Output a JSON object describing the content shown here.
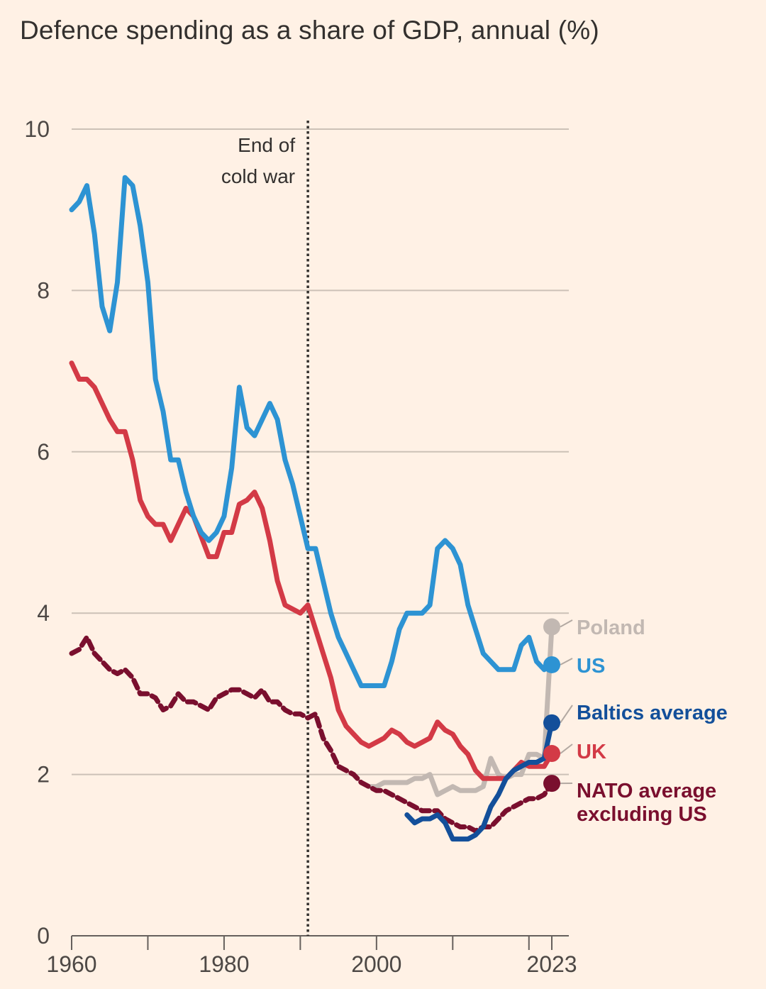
{
  "title": "Defence spending as a share of GDP, annual (%)",
  "colors": {
    "background": "#fff1e5",
    "US": "#2d93d3",
    "UK": "#d33a46",
    "Poland": "#c2b8b2",
    "Baltics average": "#134f9a",
    "NATO average excluding US": "#7a0f2e",
    "grid": "#ccc1b7",
    "text": "#33302e"
  },
  "chart_data": {
    "type": "line",
    "title": "Defence spending as a share of GDP, annual (%)",
    "xlabel": "",
    "ylabel": "",
    "xlim": [
      1960,
      2023
    ],
    "ylim": [
      0,
      10
    ],
    "grid": true,
    "x_ticks": [
      "1960",
      "1980",
      "2000",
      "2023"
    ],
    "y_ticks": [
      "0",
      "2",
      "4",
      "6",
      "8",
      "10"
    ],
    "annotation": {
      "label_line1": "End of",
      "label_line2": "cold war",
      "x": 1991
    },
    "series": [
      {
        "name": "US",
        "label": "US",
        "style": "solid",
        "x": [
          1960,
          1961,
          1962,
          1963,
          1964,
          1965,
          1966,
          1967,
          1968,
          1969,
          1970,
          1971,
          1972,
          1973,
          1974,
          1975,
          1976,
          1977,
          1978,
          1979,
          1980,
          1981,
          1982,
          1983,
          1984,
          1985,
          1986,
          1987,
          1988,
          1989,
          1990,
          1991,
          1992,
          1993,
          1994,
          1995,
          1996,
          1997,
          1998,
          1999,
          2000,
          2001,
          2002,
          2003,
          2004,
          2005,
          2006,
          2007,
          2008,
          2009,
          2010,
          2011,
          2012,
          2013,
          2014,
          2015,
          2016,
          2017,
          2018,
          2019,
          2020,
          2021,
          2022,
          2023
        ],
        "values": [
          9.0,
          9.1,
          9.3,
          8.7,
          7.8,
          7.5,
          8.1,
          9.4,
          9.3,
          8.8,
          8.1,
          6.9,
          6.5,
          5.9,
          5.9,
          5.5,
          5.2,
          5.0,
          4.9,
          5.0,
          5.2,
          5.8,
          6.8,
          6.3,
          6.2,
          6.4,
          6.6,
          6.4,
          5.9,
          5.6,
          5.2,
          4.8,
          4.8,
          4.4,
          4.0,
          3.7,
          3.5,
          3.3,
          3.1,
          3.1,
          3.1,
          3.1,
          3.4,
          3.8,
          4.0,
          4.0,
          4.0,
          4.1,
          4.8,
          4.9,
          4.8,
          4.6,
          4.1,
          3.8,
          3.5,
          3.4,
          3.3,
          3.3,
          3.3,
          3.6,
          3.7,
          3.4,
          3.3,
          3.36
        ]
      },
      {
        "name": "UK",
        "label": "UK",
        "style": "solid",
        "x": [
          1960,
          1961,
          1962,
          1963,
          1964,
          1965,
          1966,
          1967,
          1968,
          1969,
          1970,
          1971,
          1972,
          1973,
          1974,
          1975,
          1976,
          1977,
          1978,
          1979,
          1980,
          1981,
          1982,
          1983,
          1984,
          1985,
          1986,
          1987,
          1988,
          1989,
          1990,
          1991,
          1992,
          1993,
          1994,
          1995,
          1996,
          1997,
          1998,
          1999,
          2000,
          2001,
          2002,
          2003,
          2004,
          2005,
          2006,
          2007,
          2008,
          2009,
          2010,
          2011,
          2012,
          2013,
          2014,
          2015,
          2016,
          2017,
          2018,
          2019,
          2020,
          2021,
          2022,
          2023
        ],
        "values": [
          7.1,
          6.9,
          6.9,
          6.8,
          6.6,
          6.4,
          6.25,
          6.25,
          5.9,
          5.4,
          5.2,
          5.1,
          5.1,
          4.9,
          5.1,
          5.3,
          5.2,
          4.95,
          4.7,
          4.7,
          5.0,
          5.0,
          5.35,
          5.4,
          5.5,
          5.3,
          4.9,
          4.4,
          4.1,
          4.05,
          4.0,
          4.1,
          3.8,
          3.5,
          3.2,
          2.8,
          2.6,
          2.5,
          2.4,
          2.35,
          2.4,
          2.45,
          2.55,
          2.5,
          2.4,
          2.35,
          2.4,
          2.45,
          2.65,
          2.55,
          2.5,
          2.35,
          2.25,
          2.05,
          1.95,
          1.95,
          1.95,
          1.95,
          2.05,
          2.15,
          2.1,
          2.1,
          2.1,
          2.26
        ]
      },
      {
        "name": "Poland",
        "label": "Poland",
        "style": "solid",
        "x": [
          1999,
          2000,
          2001,
          2002,
          2003,
          2004,
          2005,
          2006,
          2007,
          2008,
          2009,
          2010,
          2011,
          2012,
          2013,
          2014,
          2015,
          2016,
          2017,
          2018,
          2019,
          2020,
          2021,
          2022,
          2023
        ],
        "values": [
          1.85,
          1.85,
          1.9,
          1.9,
          1.9,
          1.9,
          1.95,
          1.95,
          2.0,
          1.75,
          1.8,
          1.85,
          1.8,
          1.8,
          1.8,
          1.85,
          2.2,
          2.0,
          1.95,
          2.0,
          2.0,
          2.25,
          2.25,
          2.2,
          3.83
        ]
      },
      {
        "name": "Baltics average",
        "label": "Baltics average",
        "style": "solid",
        "x": [
          2004,
          2005,
          2006,
          2007,
          2008,
          2009,
          2010,
          2011,
          2012,
          2013,
          2014,
          2015,
          2016,
          2017,
          2018,
          2019,
          2020,
          2021,
          2022,
          2023
        ],
        "values": [
          1.5,
          1.4,
          1.45,
          1.45,
          1.5,
          1.4,
          1.2,
          1.2,
          1.2,
          1.25,
          1.35,
          1.6,
          1.75,
          1.95,
          2.05,
          2.1,
          2.15,
          2.15,
          2.2,
          2.64
        ]
      },
      {
        "name": "NATO average excluding US",
        "label": "NATO average excluding US",
        "label_line1": "NATO average",
        "label_line2": "excluding US",
        "style": "dashed",
        "x": [
          1960,
          1961,
          1962,
          1963,
          1964,
          1965,
          1966,
          1967,
          1968,
          1969,
          1970,
          1971,
          1972,
          1973,
          1974,
          1975,
          1976,
          1977,
          1978,
          1979,
          1980,
          1981,
          1982,
          1983,
          1984,
          1985,
          1986,
          1987,
          1988,
          1989,
          1990,
          1991,
          1992,
          1993,
          1994,
          1995,
          1996,
          1997,
          1998,
          1999,
          2000,
          2001,
          2002,
          2003,
          2004,
          2005,
          2006,
          2007,
          2008,
          2009,
          2010,
          2011,
          2012,
          2013,
          2014,
          2015,
          2016,
          2017,
          2018,
          2019,
          2020,
          2021,
          2022,
          2023
        ],
        "values": [
          3.5,
          3.55,
          3.7,
          3.5,
          3.4,
          3.3,
          3.25,
          3.3,
          3.2,
          3.0,
          3.0,
          2.95,
          2.8,
          2.85,
          3.0,
          2.9,
          2.9,
          2.85,
          2.8,
          2.95,
          3.0,
          3.05,
          3.05,
          3.0,
          2.95,
          3.05,
          2.9,
          2.9,
          2.8,
          2.75,
          2.75,
          2.7,
          2.75,
          2.45,
          2.3,
          2.1,
          2.05,
          2.0,
          1.9,
          1.85,
          1.8,
          1.8,
          1.75,
          1.7,
          1.65,
          1.6,
          1.55,
          1.55,
          1.55,
          1.45,
          1.4,
          1.35,
          1.35,
          1.3,
          1.35,
          1.35,
          1.45,
          1.55,
          1.6,
          1.65,
          1.7,
          1.7,
          1.75,
          1.89
        ]
      }
    ]
  }
}
